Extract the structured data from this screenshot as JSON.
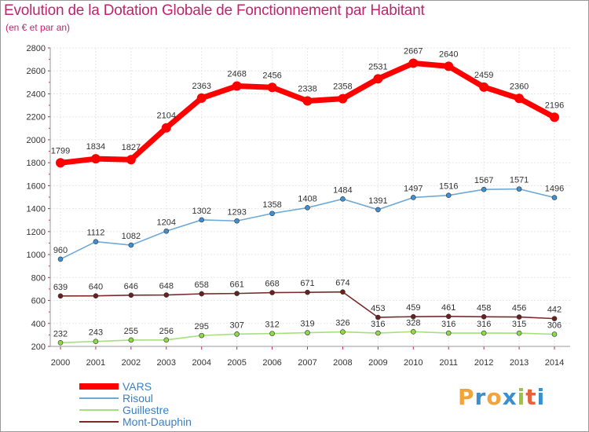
{
  "title": "Evolution de la Dotation Globale de Fonctionnement par Habitant",
  "subtitle": "(en € et par an)",
  "logo": {
    "letters": [
      "P",
      "r",
      "o",
      "x",
      "i",
      "t",
      "i"
    ],
    "colors": [
      "#f2a33a",
      "#3a8fd0",
      "#f2a33a",
      "#3a8fd0",
      "#9ac43a",
      "#e8613a",
      "#3a8fd0"
    ]
  },
  "chart_data": {
    "type": "line",
    "title": "Evolution de la Dotation Globale de Fonctionnement par Habitant",
    "subtitle": "(en € et par an)",
    "x": [
      "2000",
      "2001",
      "2002",
      "2003",
      "2004",
      "2005",
      "2006",
      "2007",
      "2008",
      "2009",
      "2010",
      "2011",
      "2012",
      "2013",
      "2014"
    ],
    "ylim": [
      200,
      2800
    ],
    "yticks": [
      "200",
      "400",
      "600",
      "800",
      "1000",
      "1200",
      "1400",
      "1600",
      "1800",
      "2000",
      "2200",
      "2400",
      "2600",
      "2800"
    ],
    "grid": true,
    "legend_position": "bottom-left",
    "series": [
      {
        "name": "VARS",
        "color": "#ff0000",
        "marker": "#ff0000",
        "emphasis": true,
        "values": [
          1799,
          1834,
          1827,
          2104,
          2363,
          2468,
          2456,
          2338,
          2358,
          2531,
          2667,
          2640,
          2459,
          2360,
          2196
        ],
        "labels": [
          "1799",
          "1834",
          "1827",
          "2104",
          "2363",
          "2468",
          "2456",
          "2338",
          "2358",
          "2531",
          "2667",
          "2640",
          "2459",
          "2360",
          "2196"
        ]
      },
      {
        "name": "Risoul",
        "color": "#6fa9d6",
        "marker": "#3f8fd2",
        "values": [
          960,
          1112,
          1082,
          1204,
          1302,
          1293,
          1358,
          1408,
          1484,
          1391,
          1497,
          1516,
          1567,
          1571,
          1496
        ],
        "labels": [
          "960",
          "1112",
          "1082",
          "1204",
          "1302",
          "1293",
          "1358",
          "1408",
          "1484",
          "1391",
          "1497",
          "1516",
          "1567",
          "1571",
          "1496"
        ]
      },
      {
        "name": "Guillestre",
        "color": "#a6e07a",
        "marker": "#8ed84a",
        "values": [
          232,
          243,
          255,
          256,
          295,
          307,
          312,
          319,
          326,
          316,
          328,
          316,
          316,
          315,
          306
        ],
        "labels": [
          "232",
          "243",
          "255",
          "256",
          "295",
          "307",
          "312",
          "319",
          "326",
          "316",
          "328",
          "316",
          "316",
          "315",
          "306"
        ]
      },
      {
        "name": "Mont-Dauphin",
        "color": "#7b2a2a",
        "marker": "#6b1f1f",
        "values": [
          639,
          640,
          646,
          648,
          658,
          661,
          668,
          671,
          674,
          453,
          459,
          461,
          458,
          456,
          442
        ],
        "labels": [
          "639",
          "640",
          "646",
          "648",
          "658",
          "661",
          "668",
          "671",
          "674",
          "453",
          "459",
          "461",
          "458",
          "456",
          "442"
        ]
      }
    ]
  }
}
